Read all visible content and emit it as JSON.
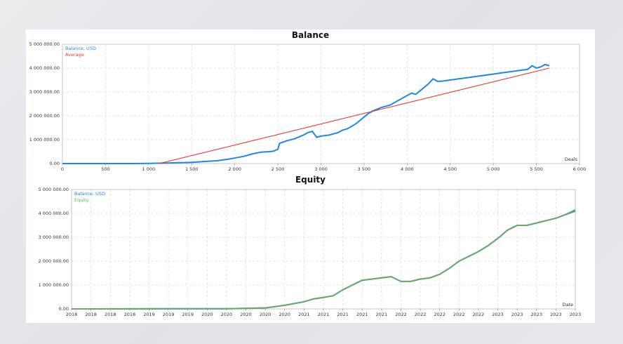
{
  "chart_data": [
    {
      "type": "line",
      "title": "Balance",
      "xlabel": "Deals",
      "ylabel": "",
      "xlim": [
        0,
        6000
      ],
      "ylim": [
        0,
        5000000
      ],
      "x_ticks": [
        "0",
        "500",
        "1 000",
        "1 500",
        "2 000",
        "2 500",
        "3 000",
        "3 500",
        "4 000",
        "4 500",
        "5 000",
        "5 500",
        "6 000"
      ],
      "y_ticks": [
        "0.00",
        "1 000 000.00",
        "2 000 000.00",
        "3 000 000.00",
        "4 000 000.00",
        "5 000 000.00"
      ],
      "grid": true,
      "legend_position": "top-left",
      "series": [
        {
          "name": "Balance, USD",
          "color": "#1e88e5",
          "x": [
            0,
            800,
            1000,
            1200,
            1500,
            1800,
            1950,
            2100,
            2200,
            2300,
            2400,
            2450,
            2500,
            2520,
            2600,
            2700,
            2800,
            2850,
            2900,
            2950,
            3000,
            3100,
            3200,
            3250,
            3300,
            3400,
            3500,
            3550,
            3600,
            3700,
            3800,
            3900,
            3950,
            4000,
            4050,
            4100,
            4150,
            4200,
            4250,
            4300,
            4350,
            4400,
            4500,
            4600,
            4700,
            4800,
            4900,
            5000,
            5100,
            5200,
            5300,
            5400,
            5450,
            5500,
            5550,
            5600,
            5650
          ],
          "y": [
            0,
            0,
            5000,
            20000,
            50000,
            120000,
            200000,
            300000,
            400000,
            480000,
            500000,
            520000,
            600000,
            850000,
            950000,
            1050000,
            1200000,
            1300000,
            1350000,
            1100000,
            1150000,
            1200000,
            1300000,
            1400000,
            1450000,
            1650000,
            1950000,
            2100000,
            2200000,
            2350000,
            2450000,
            2650000,
            2750000,
            2850000,
            2950000,
            2900000,
            3050000,
            3200000,
            3350000,
            3550000,
            3450000,
            3450000,
            3500000,
            3550000,
            3600000,
            3650000,
            3700000,
            3750000,
            3800000,
            3850000,
            3900000,
            3950000,
            4100000,
            4000000,
            4050000,
            4150000,
            4100000
          ]
        },
        {
          "name": "Average",
          "color": "#e53935",
          "x": [
            1120,
            5650
          ],
          "y": [
            0,
            4000000
          ]
        }
      ]
    },
    {
      "type": "line",
      "title": "Equity",
      "xlabel": "Date",
      "ylabel": "",
      "ylim": [
        0,
        5000000
      ],
      "x_ticks": [
        "2018",
        "2018",
        "2018",
        "2018",
        "2019",
        "2019",
        "2019",
        "2020",
        "2020",
        "2020",
        "2020",
        "2020",
        "2021",
        "2021",
        "2021",
        "2021",
        "2021",
        "2022",
        "2022",
        "2022",
        "2022",
        "2022",
        "2023",
        "2023",
        "2023",
        "2023",
        "2023"
      ],
      "y_ticks": [
        "0.00",
        "1 000 000.00",
        "2 000 000.00",
        "3 000 000.00",
        "4 000 000.00",
        "5 000 000.00"
      ],
      "grid": true,
      "legend_position": "top-left",
      "series": [
        {
          "name": "Balance, USD",
          "color": "#1e88e5",
          "x": [
            0,
            8,
            10,
            11,
            12,
            12.5,
            13,
            13.5,
            14,
            14.5,
            15,
            15.5,
            16,
            16.5,
            17,
            17.5,
            18,
            18.5,
            19,
            19.5,
            20,
            20.5,
            21,
            21.5,
            22,
            22.5,
            23,
            23.5,
            24,
            24.5,
            25,
            25.5,
            26
          ],
          "y": [
            0,
            10000,
            40000,
            150000,
            300000,
            420000,
            480000,
            550000,
            800000,
            1000000,
            1200000,
            1250000,
            1300000,
            1350000,
            1150000,
            1150000,
            1250000,
            1300000,
            1450000,
            1700000,
            2000000,
            2200000,
            2400000,
            2650000,
            2950000,
            3300000,
            3500000,
            3500000,
            3600000,
            3700000,
            3800000,
            3950000,
            4100000
          ]
        },
        {
          "name": "Equity",
          "color": "#6aaa64",
          "x": [
            0,
            8,
            10,
            11,
            12,
            12.5,
            13,
            13.5,
            14,
            14.5,
            15,
            15.5,
            16,
            16.5,
            17,
            17.5,
            18,
            18.5,
            19,
            19.5,
            20,
            20.5,
            21,
            21.5,
            22,
            22.5,
            23,
            23.5,
            24,
            24.5,
            25,
            25.5,
            26
          ],
          "y": [
            0,
            10000,
            40000,
            150000,
            300000,
            420000,
            480000,
            550000,
            800000,
            1000000,
            1200000,
            1250000,
            1300000,
            1350000,
            1150000,
            1150000,
            1250000,
            1300000,
            1450000,
            1700000,
            2000000,
            2200000,
            2400000,
            2650000,
            2950000,
            3300000,
            3500000,
            3500000,
            3600000,
            3700000,
            3800000,
            3950000,
            4150000
          ]
        }
      ]
    }
  ]
}
